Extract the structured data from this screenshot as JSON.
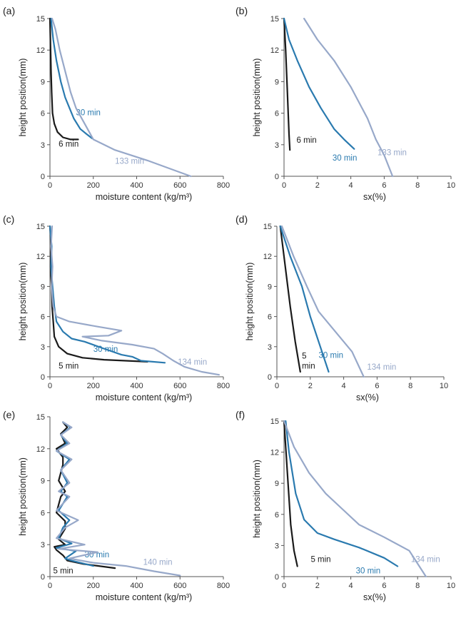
{
  "colors": {
    "black": "#1a1a1a",
    "blue": "#2a7aaf",
    "light": "#97a8c9",
    "axis": "#555555"
  },
  "chart_data": [
    {
      "panel": "(a)",
      "type": "line",
      "xlabel": "moisture content (kg/m³)",
      "ylabel": "height position(mm)",
      "xlim": [
        0,
        800
      ],
      "ylim": [
        0,
        15
      ],
      "xticks": [
        0,
        200,
        400,
        600,
        800
      ],
      "yticks": [
        0,
        3,
        6,
        9,
        12,
        15
      ],
      "series": [
        {
          "name": "6 min",
          "color": "#1a1a1a",
          "label_at": [
            40,
            2.8
          ],
          "x": [
            0,
            3,
            5,
            8,
            12,
            20,
            35,
            60,
            95,
            130
          ],
          "y": [
            15,
            12,
            10,
            8,
            6,
            5,
            4.2,
            3.7,
            3.5,
            3.5
          ]
        },
        {
          "name": "30 min",
          "color": "#2a7aaf",
          "label_at": [
            120,
            5.8
          ],
          "x": [
            5,
            15,
            30,
            50,
            70,
            90,
            110,
            140,
            170,
            195
          ],
          "y": [
            15,
            13,
            11,
            9,
            7.5,
            6.5,
            5.5,
            4.5,
            4,
            3.6
          ]
        },
        {
          "name": "133 min",
          "color": "#97a8c9",
          "label_at": [
            300,
            1.2
          ],
          "x": [
            10,
            25,
            45,
            70,
            95,
            120,
            160,
            200,
            300,
            450,
            650
          ],
          "y": [
            15,
            14,
            12,
            10,
            8,
            6.5,
            5,
            3.5,
            2.5,
            1.5,
            0
          ]
        }
      ]
    },
    {
      "panel": "(b)",
      "type": "line",
      "xlabel": "sx(%)",
      "ylabel": "height position(mm)",
      "xlim": [
        0,
        10
      ],
      "ylim": [
        0,
        15
      ],
      "xticks": [
        0,
        2,
        4,
        6,
        8,
        10
      ],
      "yticks": [
        0,
        3,
        6,
        9,
        12,
        15
      ],
      "series": [
        {
          "name": "6 min",
          "color": "#1a1a1a",
          "label_at": [
            0.75,
            3.2
          ],
          "x": [
            0,
            0.1,
            0.2,
            0.3,
            0.35
          ],
          "y": [
            15,
            12,
            8,
            4,
            2.5
          ]
        },
        {
          "name": "30 min",
          "color": "#2a7aaf",
          "label_at": [
            2.9,
            1.5
          ],
          "x": [
            0,
            0.3,
            0.8,
            1.5,
            2.2,
            3,
            3.6,
            4.2
          ],
          "y": [
            15,
            13,
            11,
            8.5,
            6.5,
            4.5,
            3.5,
            2.6
          ]
        },
        {
          "name": "133 min",
          "color": "#97a8c9",
          "label_at": [
            5.6,
            2.0
          ],
          "x": [
            1.2,
            2,
            3,
            4,
            5,
            5.5,
            6,
            6.5
          ],
          "y": [
            15,
            13,
            11,
            8.5,
            5.5,
            3.5,
            2,
            0
          ]
        }
      ]
    },
    {
      "panel": "(c)",
      "type": "line",
      "xlabel": "moisture content (kg/m³)",
      "ylabel": "height position(mm)",
      "xlim": [
        0,
        800
      ],
      "ylim": [
        0,
        15
      ],
      "xticks": [
        0,
        200,
        400,
        600,
        800
      ],
      "yticks": [
        0,
        3,
        6,
        9,
        12,
        15
      ],
      "series": [
        {
          "name": "5 min",
          "color": "#1a1a1a",
          "label_at": [
            40,
            0.8
          ],
          "x": [
            0,
            5,
            3,
            8,
            10,
            15,
            20,
            40,
            80,
            150,
            250,
            350,
            450
          ],
          "y": [
            15,
            13,
            11,
            9,
            7,
            5.5,
            4,
            3,
            2.3,
            1.9,
            1.7,
            1.6,
            1.5
          ]
        },
        {
          "name": "30 min",
          "color": "#2a7aaf",
          "label_at": [
            200,
            2.5
          ],
          "x": [
            0,
            8,
            5,
            12,
            20,
            30,
            60,
            100,
            160,
            250,
            330,
            380,
            420,
            530
          ],
          "y": [
            15,
            13,
            11,
            9,
            7,
            5.5,
            4.5,
            3.8,
            3.5,
            2.8,
            2.2,
            2,
            1.6,
            1.4
          ]
        },
        {
          "name": "134 min",
          "color": "#97a8c9",
          "label_at": [
            590,
            1.2
          ],
          "x": [
            10,
            5,
            12,
            8,
            15,
            30,
            90,
            220,
            330,
            270,
            150,
            240,
            380,
            480,
            520,
            570,
            620,
            700,
            780
          ],
          "y": [
            15,
            13,
            11,
            9,
            7,
            6,
            5.5,
            5,
            4.6,
            4.1,
            4,
            3.6,
            3.2,
            2.8,
            2.3,
            1.6,
            1.0,
            0.5,
            0.2
          ]
        }
      ]
    },
    {
      "panel": "(d)",
      "type": "line",
      "xlabel": "sx(%)",
      "ylabel": "height position(mm)",
      "xlim": [
        0,
        10
      ],
      "ylim": [
        0,
        15
      ],
      "xticks": [
        0,
        2,
        4,
        6,
        8,
        10
      ],
      "yticks": [
        0,
        3,
        6,
        9,
        12,
        15
      ],
      "series": [
        {
          "name": "5",
          "name2": "min",
          "color": "#1a1a1a",
          "label_at": [
            1.5,
            1.8
          ],
          "x": [
            0.2,
            0.5,
            0.8,
            1.1,
            1.4
          ],
          "y": [
            15,
            11,
            7,
            3.5,
            0.5
          ]
        },
        {
          "name": "30 min",
          "color": "#2a7aaf",
          "label_at": [
            2.5,
            1.9
          ],
          "x": [
            0.2,
            0.8,
            1.5,
            2,
            2.5,
            3.1
          ],
          "y": [
            15,
            12,
            9,
            6,
            3.5,
            0.5
          ]
        },
        {
          "name": "134 min",
          "color": "#97a8c9",
          "label_at": [
            5.4,
            0.7
          ],
          "x": [
            0.3,
            1,
            1.8,
            2.5,
            3.5,
            4.5,
            5.2
          ],
          "y": [
            15,
            12,
            9,
            6.5,
            4.5,
            2.5,
            0
          ]
        }
      ]
    },
    {
      "panel": "(e)",
      "type": "line",
      "xlabel": "moisture content (kg/m³)",
      "ylabel": "height position(mm)",
      "xlim": [
        0,
        800
      ],
      "ylim": [
        0,
        15
      ],
      "xticks": [
        0,
        200,
        400,
        600,
        800
      ],
      "yticks": [
        0,
        3,
        6,
        9,
        12,
        15
      ],
      "series": [
        {
          "name": "5 min",
          "color": "#1a1a1a",
          "label_at": [
            15,
            0.3
          ],
          "x": [
            60,
            80,
            50,
            70,
            30,
            60,
            60,
            40,
            70,
            50,
            30,
            70,
            70,
            40,
            70,
            20,
            30,
            60,
            80,
            150,
            300
          ],
          "y": [
            14.5,
            14,
            13.4,
            12.5,
            12,
            11.2,
            10.5,
            9,
            8,
            7.5,
            6,
            5.2,
            4.5,
            3.5,
            3,
            2.8,
            2.5,
            2,
            1.5,
            1.2,
            0.8
          ]
        },
        {
          "name": "30 min",
          "color": "#2a7aaf",
          "label_at": [
            160,
            1.8
          ],
          "x": [
            60,
            95,
            50,
            80,
            30,
            90,
            50,
            80,
            50,
            80,
            40,
            90,
            60,
            40,
            100,
            30,
            120,
            70,
            100,
            200
          ],
          "y": [
            14.5,
            14,
            13.3,
            12.5,
            11.8,
            11,
            10,
            8.8,
            8,
            7.5,
            6.2,
            5.3,
            4.6,
            3.6,
            3.1,
            2.7,
            2.4,
            1.7,
            1.5,
            1.0
          ]
        },
        {
          "name": "140 min",
          "color": "#97a8c9",
          "label_at": [
            430,
            1.1
          ],
          "x": [
            60,
            100,
            50,
            90,
            30,
            100,
            50,
            90,
            40,
            90,
            30,
            130,
            70,
            30,
            160,
            40,
            220,
            90,
            200,
            350,
            480,
            600
          ],
          "y": [
            14.5,
            14,
            13.3,
            12.5,
            11.8,
            11,
            10,
            8.8,
            8,
            7.5,
            6.2,
            5.3,
            4.6,
            3.6,
            3,
            2.6,
            2.3,
            1.7,
            1.3,
            1,
            0.5,
            0.1
          ]
        }
      ]
    },
    {
      "panel": "(f)",
      "type": "line",
      "xlabel": "sx(%)",
      "ylabel": "height position(mm)",
      "xlim": [
        0,
        10
      ],
      "ylim": [
        0,
        15
      ],
      "xticks": [
        0,
        2,
        4,
        6,
        8,
        10
      ],
      "yticks": [
        0,
        3,
        6,
        9,
        12,
        15
      ],
      "series": [
        {
          "name": "5 min",
          "color": "#1a1a1a",
          "label_at": [
            1.6,
            1.4
          ],
          "x": [
            0,
            0.2,
            0.4,
            0.6,
            0.8
          ],
          "y": [
            15,
            10,
            5,
            2.5,
            1
          ]
        },
        {
          "name": "30 min",
          "color": "#2a7aaf",
          "label_at": [
            4.3,
            0.3
          ],
          "x": [
            0.1,
            0.3,
            0.7,
            1.2,
            2,
            3,
            4.5,
            6,
            6.8
          ],
          "y": [
            15,
            12,
            8,
            5.5,
            4.2,
            3.6,
            2.8,
            1.8,
            1
          ]
        },
        {
          "name": "134 min",
          "color": "#97a8c9",
          "label_at": [
            7.6,
            1.4
          ],
          "x": [
            0,
            0.6,
            1.5,
            2.5,
            3.5,
            4.5,
            6,
            7.5,
            8.5
          ],
          "y": [
            15,
            12.5,
            10,
            8,
            6.5,
            5,
            3.8,
            2.5,
            0
          ]
        }
      ]
    }
  ]
}
